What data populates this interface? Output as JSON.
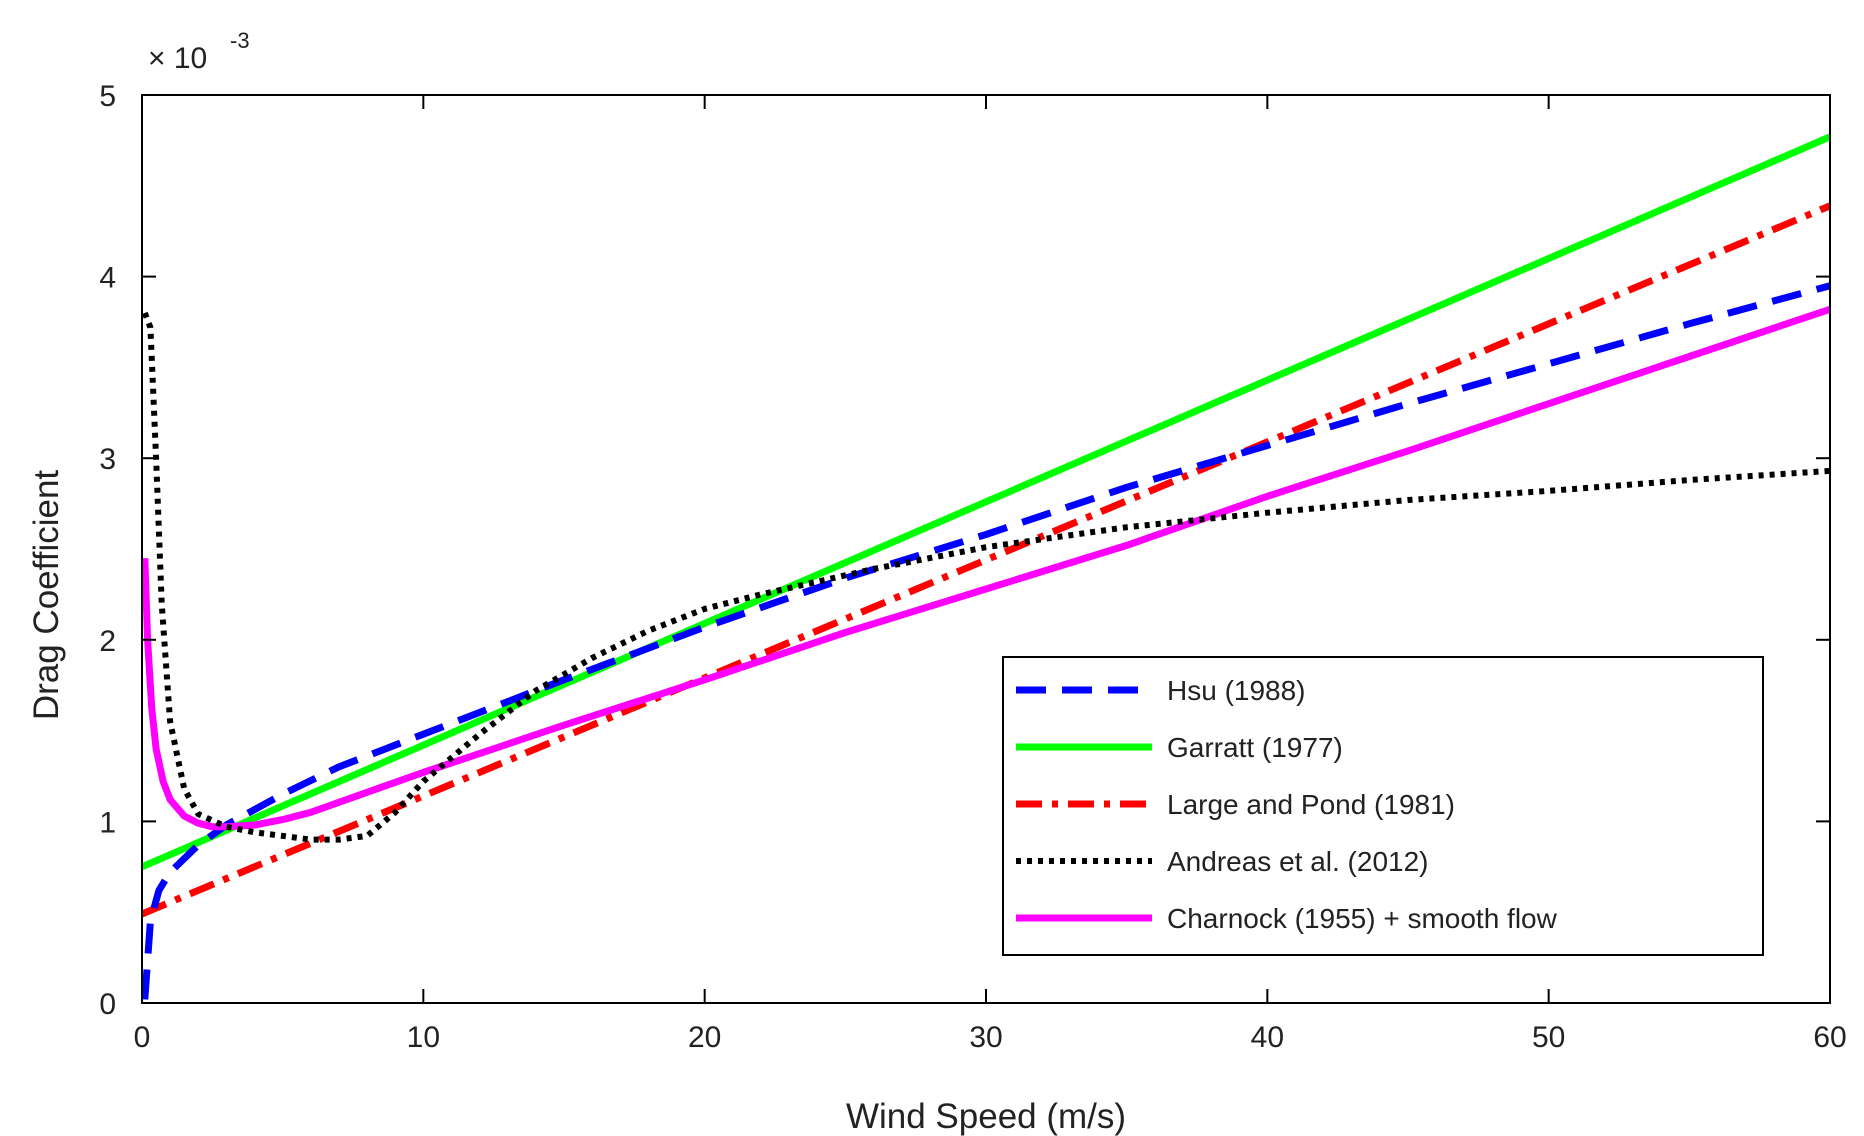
{
  "chart_data": {
    "type": "line",
    "title": "",
    "xlabel": "Wind Speed (m/s)",
    "ylabel": "Drag Coefficient",
    "y_multiplier": "× 10",
    "y_exponent": "-3",
    "xlim": [
      0,
      60
    ],
    "ylim": [
      0,
      5
    ],
    "xticks": [
      "0",
      "10",
      "20",
      "30",
      "40",
      "50",
      "60"
    ],
    "yticks": [
      "0",
      "1",
      "2",
      "3",
      "4",
      "5"
    ],
    "grid": false,
    "legend_position": "lower-right",
    "series": [
      {
        "name": "Hsu (1988)",
        "color": "#0000ff",
        "style": "dashed",
        "x": [
          0.1,
          0.3,
          0.6,
          1,
          2,
          3,
          5,
          7,
          10,
          15,
          20,
          25,
          30,
          35,
          40,
          45,
          50,
          55,
          60
        ],
        "y": [
          0.02,
          0.45,
          0.62,
          0.72,
          0.87,
          0.98,
          1.15,
          1.3,
          1.48,
          1.78,
          2.07,
          2.34,
          2.58,
          2.84,
          3.07,
          3.3,
          3.52,
          3.74,
          3.95
        ]
      },
      {
        "name": "Garratt (1977)",
        "color": "#00ff00",
        "style": "solid",
        "x": [
          0,
          60
        ],
        "y": [
          0.75,
          4.77
        ]
      },
      {
        "name": "Large and Pond (1981)",
        "color": "#ff0000",
        "style": "dashdot",
        "x": [
          0,
          60
        ],
        "y": [
          0.49,
          4.39
        ]
      },
      {
        "name": "Andreas et al. (2012)",
        "color": "#000000",
        "style": "dotted",
        "x": [
          0.1,
          0.3,
          0.5,
          0.7,
          1,
          1.5,
          2,
          3,
          4,
          5,
          6,
          7,
          8,
          9,
          10,
          12,
          14,
          16,
          18,
          20,
          22,
          24,
          26,
          28,
          30,
          35,
          40,
          45,
          50,
          55,
          60
        ],
        "y": [
          3.8,
          3.72,
          3.0,
          2.2,
          1.55,
          1.18,
          1.04,
          0.97,
          0.94,
          0.92,
          0.9,
          0.9,
          0.92,
          1.05,
          1.22,
          1.48,
          1.72,
          1.9,
          2.05,
          2.17,
          2.25,
          2.32,
          2.39,
          2.45,
          2.51,
          2.62,
          2.7,
          2.77,
          2.82,
          2.88,
          2.93
        ]
      },
      {
        "name": "Charnock (1955) + smooth flow",
        "color": "#ff00ff",
        "style": "solid",
        "x": [
          0.1,
          0.2,
          0.35,
          0.5,
          0.75,
          1,
          1.5,
          2,
          2.5,
          3,
          4,
          5,
          6,
          8,
          10,
          15,
          20,
          25,
          30,
          35,
          40,
          45,
          50,
          55,
          60
        ],
        "y": [
          2.45,
          2.0,
          1.62,
          1.4,
          1.22,
          1.12,
          1.03,
          0.99,
          0.97,
          0.97,
          0.98,
          1.01,
          1.05,
          1.16,
          1.27,
          1.53,
          1.78,
          2.04,
          2.28,
          2.52,
          2.79,
          3.04,
          3.3,
          3.56,
          3.82
        ]
      }
    ]
  }
}
